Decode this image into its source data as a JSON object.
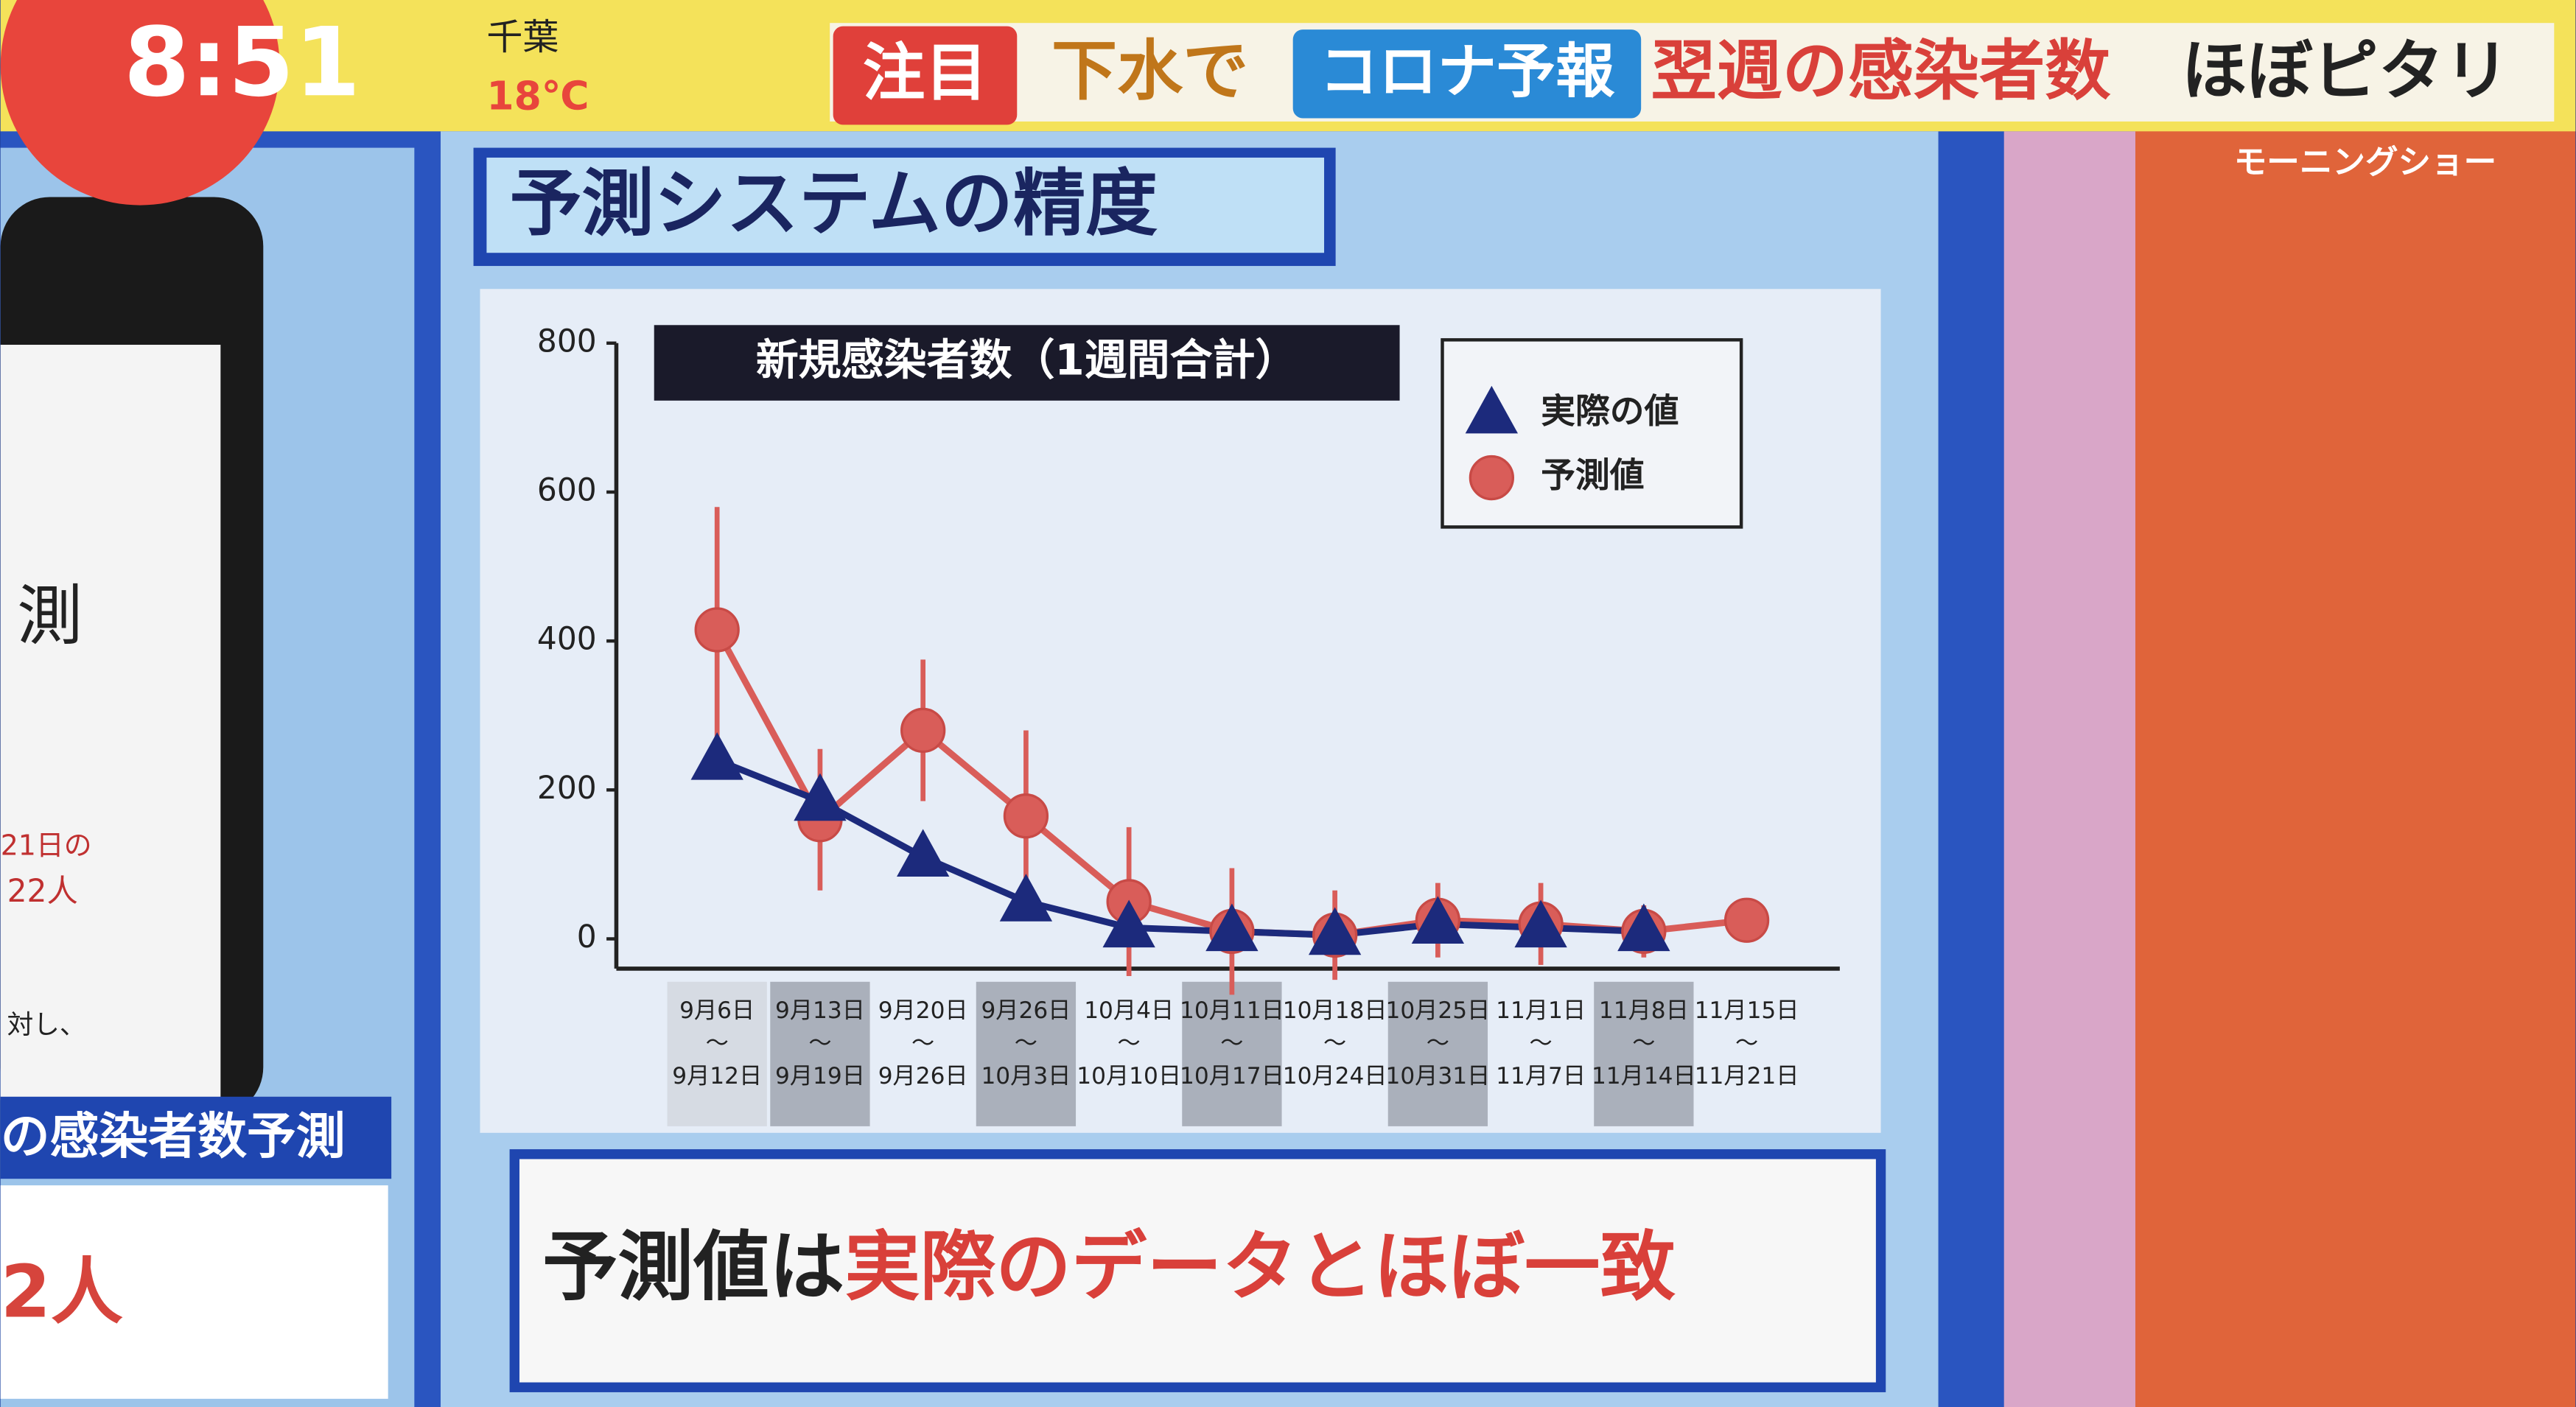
{
  "broadcast": {
    "time": "8:51",
    "place": "千葉",
    "temperature": "18℃",
    "tag": "注目",
    "headline_1": "下水で",
    "headline_2": "コロナ予報",
    "headline_3": "翌週の感染者数",
    "headline_4": "ほぼピタリ",
    "logo": "モーニングショー",
    "panel_title": "予測システムの精度",
    "caption_1": "予測値は",
    "caption_2": "実際のデータとほぼ一致"
  },
  "side_panel": {
    "char": "測",
    "note_1": "21日の",
    "note_2": "22人",
    "note_3": "対し、",
    "label": "の感染者数予測",
    "value": "2人"
  },
  "chart_data": {
    "type": "line",
    "title": "新規感染者数（1週間合計）",
    "categories": [
      "9月6日〜9月12日",
      "9月13日〜9月19日",
      "9月20日〜9月26日",
      "9月26日〜10月3日",
      "10月4日〜10月10日",
      "10月11日〜10月17日",
      "10月18日〜10月24日",
      "10月25日〜10月31日",
      "11月1日〜11月7日",
      "11月8日〜11月14日",
      "11月15日〜11月21日"
    ],
    "series": [
      {
        "name": "実際の値",
        "color": "#1c2a7c",
        "marker": "triangle",
        "values": [
          240,
          185,
          110,
          50,
          15,
          10,
          5,
          20,
          15,
          10,
          null
        ]
      },
      {
        "name": "予測値",
        "color": "#d95d59",
        "marker": "circle",
        "values": [
          415,
          160,
          280,
          165,
          50,
          10,
          5,
          25,
          20,
          10,
          25
        ],
        "errors": [
          165,
          95,
          95,
          115,
          100,
          85,
          60,
          50,
          55,
          35,
          10
        ]
      }
    ],
    "ylim": [
      -40,
      800
    ],
    "yticks": [
      0,
      200,
      400,
      600,
      800
    ],
    "legend": "upper right"
  }
}
